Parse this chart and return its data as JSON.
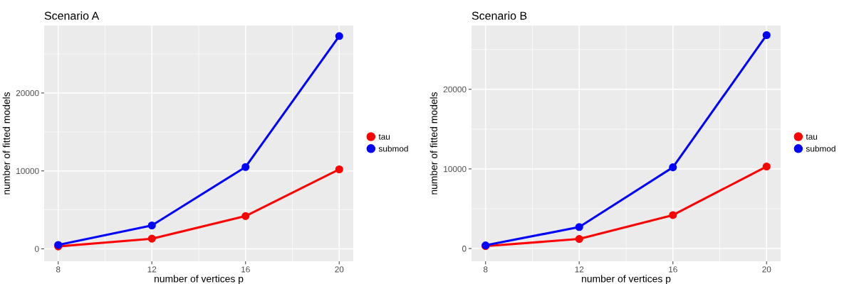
{
  "chart_data": [
    {
      "type": "line",
      "title": "Scenario A",
      "xlabel": "number of vertices p",
      "ylabel": "number of fitted models",
      "x": [
        8,
        12,
        16,
        20
      ],
      "series": [
        {
          "name": "tau",
          "color": "#ff0000",
          "values": [
            300,
            1300,
            4200,
            10200
          ]
        },
        {
          "name": "submod",
          "color": "#0000ff",
          "values": [
            500,
            3000,
            10500,
            27300
          ]
        }
      ],
      "xlim": [
        7.4,
        20.6
      ],
      "ylim": [
        -1600,
        28650
      ],
      "xticks": [
        8,
        {
          "value": 10,
          "label": null
        },
        12,
        {
          "value": 14,
          "label": null
        },
        16,
        {
          "value": 18,
          "label": null
        },
        20
      ],
      "yticks": [
        0,
        {
          "value": 5000,
          "label": null
        },
        10000,
        {
          "value": 15000,
          "label": null
        },
        20000,
        {
          "value": 25000,
          "label": null
        }
      ],
      "grid": true,
      "legend": "right",
      "marker": "circle",
      "line_style": "solid"
    },
    {
      "type": "line",
      "title": "Scenario B",
      "xlabel": "number of vertices p",
      "ylabel": "number of fitted models",
      "x": [
        8,
        12,
        16,
        20
      ],
      "series": [
        {
          "name": "tau",
          "color": "#ff0000",
          "values": [
            300,
            1200,
            4200,
            10300
          ]
        },
        {
          "name": "submod",
          "color": "#0000ff",
          "values": [
            400,
            2700,
            10200,
            26800
          ]
        }
      ],
      "xlim": [
        7.4,
        20.6
      ],
      "ylim": [
        -1600,
        28000
      ],
      "xticks": [
        8,
        {
          "value": 10,
          "label": null
        },
        12,
        {
          "value": 14,
          "label": null
        },
        16,
        {
          "value": 18,
          "label": null
        },
        20
      ],
      "yticks": [
        0,
        {
          "value": 5000,
          "label": null
        },
        10000,
        {
          "value": 15000,
          "label": null
        },
        20000,
        {
          "value": 25000,
          "label": null
        }
      ],
      "grid": true,
      "legend": "right",
      "marker": "circle",
      "line_style": "solid"
    }
  ]
}
